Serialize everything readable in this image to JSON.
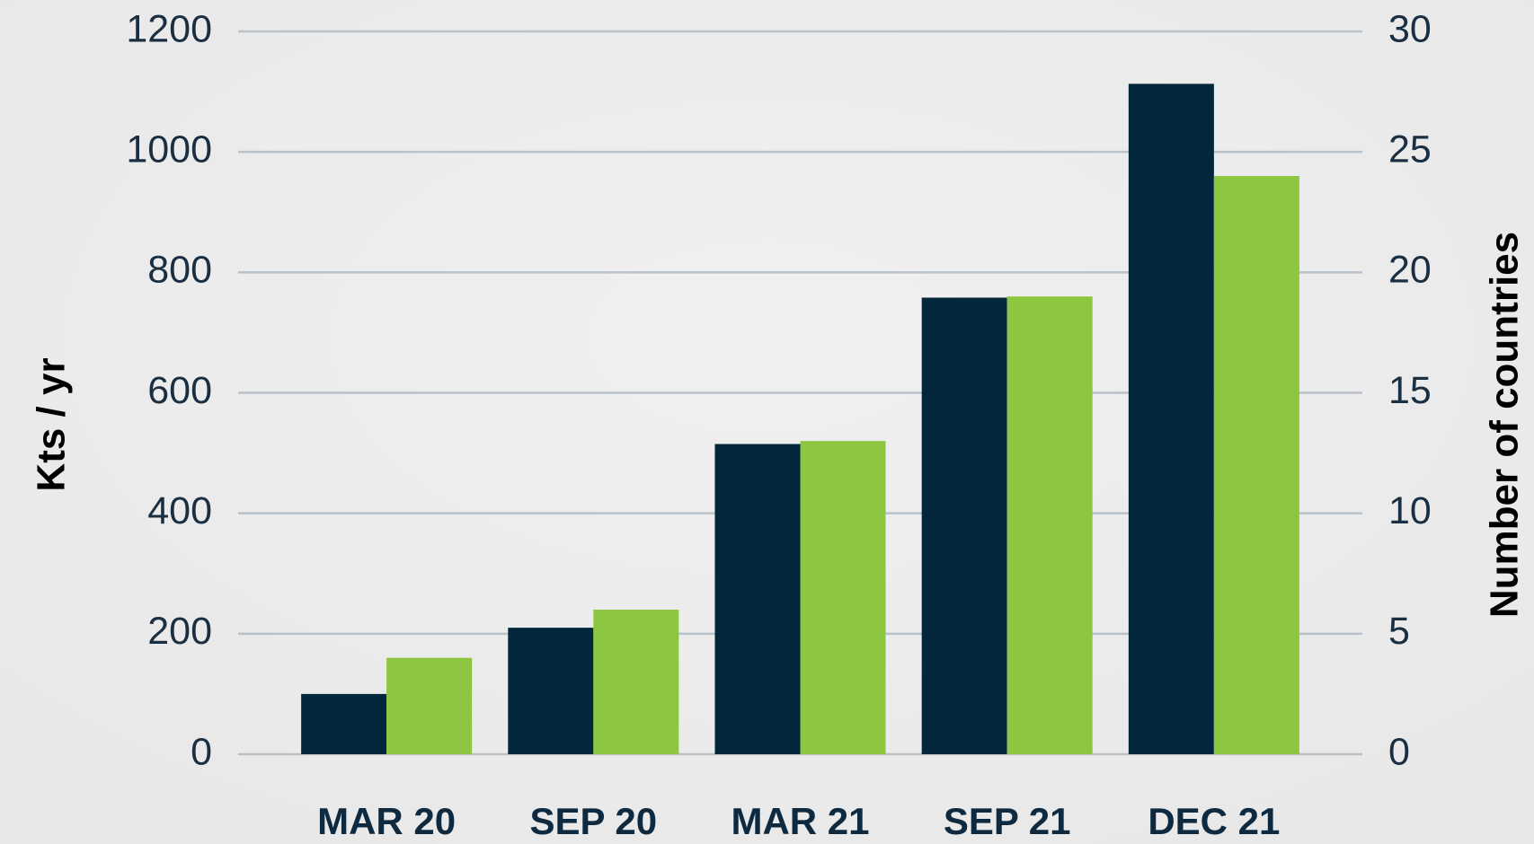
{
  "chart_data": {
    "type": "bar",
    "categories": [
      "MAR 20",
      "SEP 20",
      "MAR 21",
      "SEP 21",
      "DEC 21"
    ],
    "series": [
      {
        "color": "#02263a",
        "values": [
          100,
          210,
          515,
          758,
          1113
        ]
      },
      {
        "color": "#8dc641",
        "axis": "y2",
        "values": [
          4,
          6,
          13,
          19,
          24
        ]
      }
    ],
    "ylabel": "Kts / yr",
    "y2label": "Number of countries",
    "ylim": [
      0,
      1200
    ],
    "yticks": [
      0,
      200,
      400,
      600,
      800,
      1000,
      1200
    ],
    "y2lim": [
      0,
      30
    ],
    "y2ticks": [
      0,
      5,
      10,
      15,
      20,
      25,
      30
    ],
    "grid": true
  }
}
